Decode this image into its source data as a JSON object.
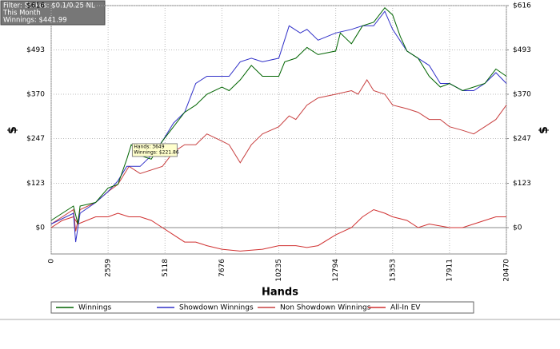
{
  "chart_data": {
    "type": "line",
    "info_box": [
      "Filter: Stakes: $0.1/0.25 NL",
      "This Month",
      "Winnings: $441.99"
    ],
    "tooltip": [
      "Hands: 3649",
      "Winnings: $221.86"
    ],
    "xlabel": "Hands",
    "ylabel": "$",
    "y2label": "$",
    "xlim": [
      0,
      20470
    ],
    "xticks": [
      0,
      2559,
      5118,
      7676,
      10235,
      12794,
      15353,
      17911,
      20470
    ],
    "ylim": [
      -73,
      616
    ],
    "yticks": [
      {
        "value": 0,
        "label": "$0"
      },
      {
        "value": 123,
        "label": "$123"
      },
      {
        "value": 247,
        "label": "$247"
      },
      {
        "value": 370,
        "label": "$370"
      },
      {
        "value": 493,
        "label": "$493"
      },
      {
        "value": 616,
        "label": "$616"
      }
    ],
    "y2lim": [
      -73,
      616
    ],
    "y2ticks": [
      {
        "value": 0,
        "label": "$0"
      },
      {
        "value": 123,
        "label": "$123"
      },
      {
        "value": 247,
        "label": "$247"
      },
      {
        "value": 370,
        "label": "$370"
      },
      {
        "value": 493,
        "label": "$493"
      },
      {
        "value": 616,
        "label": "$616"
      }
    ],
    "grid": true,
    "series": [
      {
        "name": "Winnings",
        "color": "#006400",
        "x": [
          0,
          500,
          1000,
          1200,
          1300,
          2000,
          2559,
          3000,
          3400,
          3600,
          4000,
          4500,
          5000,
          5500,
          6000,
          6500,
          7000,
          7676,
          8000,
          8500,
          9000,
          9500,
          10235,
          10500,
          11000,
          11500,
          12000,
          12794,
          13000,
          13500,
          14000,
          14500,
          15000,
          15353,
          15700,
          16000,
          16500,
          17000,
          17500,
          17911,
          18500,
          19000,
          19500,
          20000,
          20470
        ],
        "values": [
          20,
          40,
          60,
          10,
          60,
          70,
          110,
          120,
          190,
          230,
          200,
          190,
          240,
          280,
          320,
          340,
          370,
          390,
          380,
          410,
          450,
          420,
          420,
          460,
          470,
          500,
          480,
          490,
          540,
          510,
          560,
          570,
          610,
          590,
          530,
          490,
          470,
          420,
          390,
          400,
          380,
          390,
          400,
          440,
          420
        ]
      },
      {
        "name": "Showdown Winnings",
        "color": "#3030c8",
        "x": [
          0,
          1000,
          1100,
          1300,
          2000,
          2559,
          3000,
          3400,
          4000,
          4500,
          5000,
          5500,
          6000,
          6500,
          7000,
          7676,
          8000,
          8500,
          9000,
          9500,
          10235,
          10700,
          11200,
          11500,
          12000,
          12794,
          13500,
          14000,
          14500,
          15000,
          15353,
          16000,
          16500,
          17000,
          17500,
          17911,
          18500,
          19000,
          19500,
          20000,
          20470
        ],
        "values": [
          10,
          40,
          -40,
          40,
          70,
          100,
          130,
          170,
          170,
          200,
          240,
          290,
          320,
          400,
          420,
          420,
          420,
          460,
          470,
          460,
          470,
          560,
          540,
          550,
          520,
          540,
          550,
          560,
          560,
          600,
          550,
          490,
          470,
          450,
          400,
          400,
          380,
          380,
          400,
          430,
          400
        ]
      },
      {
        "name": "Non Showdown Winnings",
        "color": "#c84040",
        "x": [
          0,
          1000,
          1100,
          1300,
          2000,
          2559,
          3000,
          3500,
          4000,
          5000,
          5500,
          6000,
          6500,
          7000,
          7676,
          8000,
          8500,
          9000,
          9500,
          10235,
          10700,
          11000,
          11500,
          12000,
          12794,
          13500,
          13800,
          14200,
          14500,
          15000,
          15353,
          16000,
          16500,
          17000,
          17500,
          17911,
          18500,
          19000,
          19500,
          20000,
          20470
        ],
        "values": [
          10,
          50,
          -10,
          50,
          70,
          100,
          120,
          170,
          150,
          170,
          210,
          230,
          230,
          260,
          240,
          230,
          180,
          230,
          260,
          280,
          310,
          300,
          340,
          360,
          370,
          380,
          370,
          410,
          380,
          370,
          340,
          330,
          320,
          300,
          300,
          280,
          270,
          260,
          280,
          300,
          340
        ]
      },
      {
        "name": "All-In EV",
        "color": "#d03030",
        "x": [
          0,
          500,
          1000,
          1200,
          2000,
          2559,
          3000,
          3500,
          4000,
          4500,
          5000,
          5500,
          6000,
          6500,
          7000,
          7676,
          8500,
          9500,
          10235,
          11000,
          11500,
          12000,
          12794,
          13500,
          14000,
          14500,
          15000,
          15353,
          16000,
          16500,
          17000,
          17911,
          18500,
          19000,
          19500,
          20000,
          20470
        ],
        "values": [
          0,
          20,
          30,
          10,
          30,
          30,
          40,
          30,
          30,
          20,
          0,
          -20,
          -40,
          -40,
          -50,
          -60,
          -65,
          -60,
          -50,
          -50,
          -55,
          -50,
          -20,
          0,
          30,
          50,
          40,
          30,
          20,
          0,
          10,
          0,
          0,
          10,
          20,
          30,
          30
        ]
      }
    ]
  }
}
